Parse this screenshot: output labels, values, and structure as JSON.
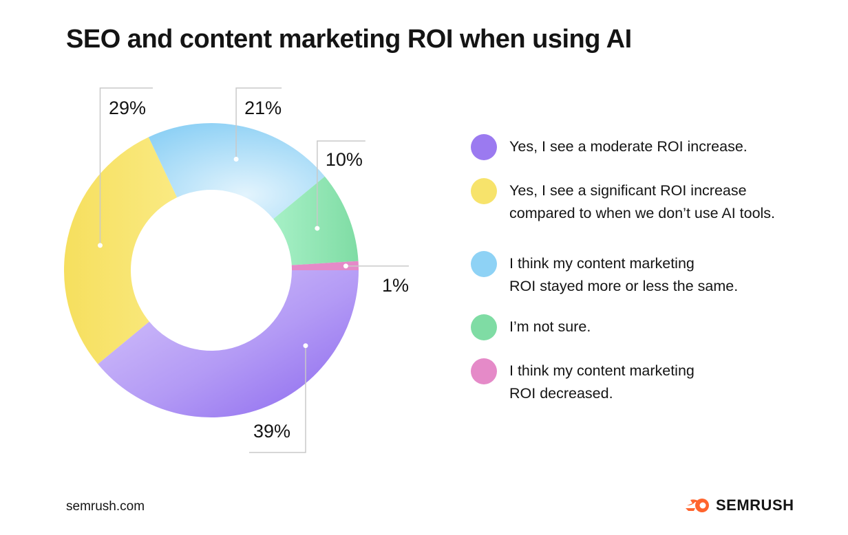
{
  "title": "SEO and content marketing ROI when using AI",
  "footer": {
    "source": "semrush.com",
    "brand": "SEMRUSH"
  },
  "legend": [
    {
      "label": "Yes, I see a moderate ROI increase.",
      "color": "#9b7af0"
    },
    {
      "label": "Yes, I see a significant ROI increase\ncompared to when we don’t use AI tools.",
      "color": "#f7e36b"
    },
    {
      "label": "I think my content marketing\nROI stayed more or less the same.",
      "color": "#8ed2f5"
    },
    {
      "label": "I’m not sure.",
      "color": "#7fdca4"
    },
    {
      "label": "I think my content marketing\nROI decreased.",
      "color": "#e58ac8"
    }
  ],
  "chart_data": {
    "type": "pie",
    "donut": true,
    "slices": [
      {
        "label": "Yes, I see a moderate ROI increase.",
        "value": 39,
        "display": "39%",
        "color": "#b59cf5"
      },
      {
        "label": "Yes, I see a significant ROI increase compared to when we don’t use AI tools.",
        "value": 29,
        "display": "29%",
        "color": "#f8e675"
      },
      {
        "label": "I think my content marketing ROI stayed more or less the same.",
        "value": 21,
        "display": "21%",
        "color": "#a6dcf7"
      },
      {
        "label": "I’m not sure.",
        "value": 10,
        "display": "10%",
        "color": "#92e6b8"
      },
      {
        "label": "I think my content marketing ROI decreased.",
        "value": 1,
        "display": "1%",
        "color": "#e58ac8"
      }
    ],
    "start": "3 o'clock, clockwise",
    "legend_position": "right"
  }
}
